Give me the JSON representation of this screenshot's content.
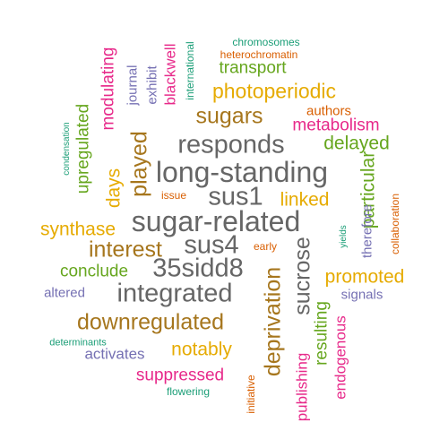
{
  "palette": {
    "teal": "#1b9e77",
    "orange": "#d95f02",
    "purple": "#7570b3",
    "magenta": "#e7298a",
    "green": "#66a61e",
    "gold": "#e6ab02",
    "brown": "#a6761d",
    "gray": "#666666"
  },
  "words": [
    {
      "text": "sugar-related",
      "color": "gray"
    },
    {
      "text": "long-standing",
      "color": "gray"
    },
    {
      "text": "responds",
      "color": "gray"
    },
    {
      "text": "integrated",
      "color": "gray"
    },
    {
      "text": "35sidd8",
      "color": "gray"
    },
    {
      "text": "sus1",
      "color": "gray"
    },
    {
      "text": "sus4",
      "color": "gray"
    },
    {
      "text": "interest",
      "color": "brown"
    },
    {
      "text": "downregulated",
      "color": "brown"
    },
    {
      "text": "sugars",
      "color": "brown"
    },
    {
      "text": "photoperiodic",
      "color": "gold"
    },
    {
      "text": "played",
      "color": "brown"
    },
    {
      "text": "deprivation",
      "color": "brown"
    },
    {
      "text": "sucrose",
      "color": "gray"
    },
    {
      "text": "synthase",
      "color": "gold"
    },
    {
      "text": "linked",
      "color": "gold"
    },
    {
      "text": "notably",
      "color": "gold"
    },
    {
      "text": "promoted",
      "color": "gold"
    },
    {
      "text": "delayed",
      "color": "green"
    },
    {
      "text": "particular",
      "color": "green"
    },
    {
      "text": "transport",
      "color": "green"
    },
    {
      "text": "conclude",
      "color": "green"
    },
    {
      "text": "metabolism",
      "color": "magenta"
    },
    {
      "text": "days",
      "color": "gold"
    },
    {
      "text": "upregulated",
      "color": "green"
    },
    {
      "text": "modulating",
      "color": "magenta"
    },
    {
      "text": "suppressed",
      "color": "magenta"
    },
    {
      "text": "resulting",
      "color": "green"
    },
    {
      "text": "endogenous",
      "color": "magenta"
    },
    {
      "text": "publishing",
      "color": "magenta"
    },
    {
      "text": "blackwell",
      "color": "magenta"
    },
    {
      "text": "activates",
      "color": "purple"
    },
    {
      "text": "altered",
      "color": "purple"
    },
    {
      "text": "signals",
      "color": "purple"
    },
    {
      "text": "therefore",
      "color": "purple"
    },
    {
      "text": "journal",
      "color": "purple"
    },
    {
      "text": "exhibit",
      "color": "purple"
    },
    {
      "text": "authors",
      "color": "orange"
    },
    {
      "text": "heterochromatin",
      "color": "orange"
    },
    {
      "text": "chromosomes",
      "color": "teal"
    },
    {
      "text": "international",
      "color": "teal"
    },
    {
      "text": "issue",
      "color": "orange"
    },
    {
      "text": "early",
      "color": "orange"
    },
    {
      "text": "initiative",
      "color": "orange"
    },
    {
      "text": "collaboration",
      "color": "orange"
    },
    {
      "text": "yields",
      "color": "teal"
    },
    {
      "text": "condensation",
      "color": "teal"
    },
    {
      "text": "determinants",
      "color": "teal"
    },
    {
      "text": "flowering",
      "color": "teal"
    }
  ]
}
